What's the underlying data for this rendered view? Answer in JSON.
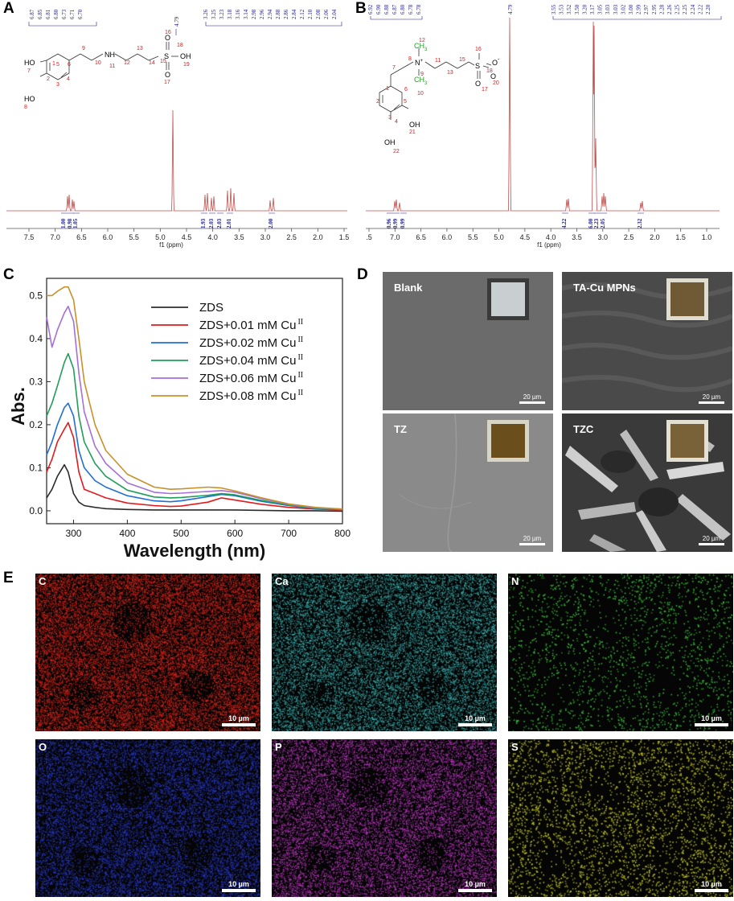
{
  "panels": {
    "a": {
      "letter": "A"
    },
    "b": {
      "letter": "B"
    },
    "c": {
      "letter": "C"
    },
    "d": {
      "letter": "D"
    },
    "e": {
      "letter": "E"
    }
  },
  "nmr_a": {
    "peak_labels_left": [
      "6.87",
      "6.85",
      "6.81",
      "6.80",
      "6.73",
      "6.71",
      "6.70"
    ],
    "peak_label_mid": "4.79",
    "peak_labels_right": [
      "3.26",
      "3.25",
      "3.23",
      "3.18",
      "3.16",
      "3.14",
      "2.98",
      "2.96",
      "2.94",
      "2.88",
      "2.86",
      "2.84",
      "2.12",
      "2.10",
      "2.08",
      "2.06",
      "2.04"
    ],
    "integrals": [
      "1.00",
      "0.98",
      "1.05",
      "1.93",
      "2.03",
      "2.03",
      "2.01",
      "2.00"
    ],
    "xlabel": "f1 (ppm)",
    "x_ticks": [
      "7.5",
      "7.0",
      "6.5",
      "6.0",
      "5.5",
      "5.0",
      "4.5",
      "4.0",
      "3.5",
      "3.0",
      "2.5",
      "2.0",
      "1.5"
    ],
    "structure_atoms": {
      "ho_top": "HO",
      "ho_bottom": "HO",
      "nh": "NH",
      "s": "S",
      "oh": "OH",
      "o_top": "O",
      "o_bottom": "O"
    },
    "structure_numbers": [
      "1",
      "2",
      "3",
      "4",
      "5",
      "6",
      "7",
      "8",
      "9",
      "10",
      "11",
      "12",
      "13",
      "14",
      "15",
      "16",
      "17",
      "18",
      "19"
    ]
  },
  "nmr_b": {
    "peak_labels_left": [
      "6.92",
      "6.90",
      "6.88",
      "6.87",
      "6.80",
      "6.78",
      "6.78"
    ],
    "peak_label_mid": "4.79",
    "peak_labels_right": [
      "3.55",
      "3.53",
      "3.52",
      "3.50",
      "3.20",
      "3.17",
      "3.05",
      "3.03",
      "3.03",
      "3.02",
      "3.00",
      "2.99",
      "2.97",
      "2.95",
      "2.28",
      "2.26",
      "2.25",
      "2.25",
      "2.24",
      "2.22",
      "2.20"
    ],
    "integrals": [
      "0.96",
      "0.99",
      "0.99",
      "4.22",
      "6.00",
      "2.23",
      "2.05",
      "2.32"
    ],
    "xlabel": "f1 (ppm)",
    "x_ticks": [
      ".5",
      "7.0",
      "6.5",
      "6.0",
      "5.5",
      "5.0",
      "4.5",
      "4.0",
      "3.5",
      "3.0",
      "2.5",
      "2.0",
      "1.5",
      "1.0"
    ],
    "structure_atoms": {
      "ch3_top": "CH",
      "ch3_bottom": "CH",
      "sub3": "3",
      "n": "N",
      "plus": "+",
      "s": "S",
      "o_minus": "O",
      "minus": "-",
      "o_right": "O",
      "o_bottom": "O",
      "oh": "OH",
      "oh_bottom": "OH"
    },
    "structure_numbers": [
      "1",
      "2",
      "3",
      "4",
      "5",
      "6",
      "7",
      "8",
      "9",
      "10",
      "11",
      "12",
      "13",
      "15",
      "16",
      "17",
      "18",
      "20",
      "21",
      "22"
    ]
  },
  "chart_data": {
    "type": "line",
    "title": "",
    "xlabel": "Wavelength (nm)",
    "ylabel": "Abs.",
    "xlim": [
      250,
      800
    ],
    "ylim": [
      -0.03,
      0.54
    ],
    "x_ticks": [
      300,
      400,
      500,
      600,
      700,
      800
    ],
    "y_ticks": [
      0.0,
      0.1,
      0.2,
      0.3,
      0.4,
      0.5
    ],
    "x_tick_labels": [
      "300",
      "400",
      "500",
      "600",
      "700",
      "800"
    ],
    "y_tick_labels": [
      "0.0",
      "0.1",
      "0.2",
      "0.3",
      "0.4",
      "0.5"
    ],
    "legend_position": "top-right",
    "x": [
      250,
      260,
      270,
      283,
      290,
      300,
      310,
      320,
      340,
      360,
      400,
      450,
      480,
      500,
      550,
      575,
      600,
      650,
      700,
      750,
      800
    ],
    "series": [
      {
        "name": "ZDS",
        "legend_main": "ZDS",
        "legend_sup": "",
        "color": "#2b2b2b",
        "values": [
          0.03,
          0.05,
          0.08,
          0.107,
          0.09,
          0.04,
          0.02,
          0.012,
          0.008,
          0.005,
          0.003,
          0.002,
          0.002,
          0.002,
          0.002,
          0.002,
          0.002,
          0.001,
          0.0,
          0.0,
          -0.001
        ]
      },
      {
        "name": "ZDS+0.01 mM Cu II",
        "legend_main": "ZDS+0.01 mM Cu",
        "legend_sup": "II",
        "color": "#e31a1c",
        "values": [
          0.09,
          0.12,
          0.16,
          0.19,
          0.205,
          0.17,
          0.09,
          0.05,
          0.04,
          0.03,
          0.018,
          0.012,
          0.01,
          0.011,
          0.02,
          0.03,
          0.025,
          0.015,
          0.008,
          0.004,
          0.002
        ]
      },
      {
        "name": "ZDS+0.02 mM Cu II",
        "legend_main": "ZDS+0.02 mM Cu",
        "legend_sup": "II",
        "color": "#1f6fd4",
        "values": [
          0.13,
          0.16,
          0.2,
          0.24,
          0.25,
          0.22,
          0.14,
          0.1,
          0.07,
          0.055,
          0.035,
          0.023,
          0.021,
          0.023,
          0.033,
          0.038,
          0.035,
          0.022,
          0.012,
          0.005,
          0.003
        ]
      },
      {
        "name": "ZDS+0.04 mM Cu II",
        "legend_main": "ZDS+0.04 mM Cu",
        "legend_sup": "II",
        "color": "#1f9e5a",
        "values": [
          0.22,
          0.25,
          0.29,
          0.345,
          0.365,
          0.33,
          0.22,
          0.16,
          0.11,
          0.08,
          0.048,
          0.032,
          0.03,
          0.031,
          0.036,
          0.04,
          0.037,
          0.024,
          0.013,
          0.006,
          0.003
        ]
      },
      {
        "name": "ZDS+0.06 mM Cu II",
        "legend_main": "ZDS+0.06 mM Cu",
        "legend_sup": "II",
        "color": "#a66fd8",
        "values": [
          0.45,
          0.38,
          0.42,
          0.46,
          0.475,
          0.44,
          0.32,
          0.23,
          0.15,
          0.11,
          0.065,
          0.043,
          0.04,
          0.041,
          0.045,
          0.047,
          0.043,
          0.028,
          0.015,
          0.007,
          0.004
        ]
      },
      {
        "name": "ZDS+0.08 mM Cu II",
        "legend_main": "ZDS+0.08 mM Cu",
        "legend_sup": "II",
        "color": "#c9902a",
        "values": [
          0.5,
          0.5,
          0.51,
          0.52,
          0.52,
          0.49,
          0.4,
          0.3,
          0.2,
          0.14,
          0.085,
          0.055,
          0.05,
          0.051,
          0.055,
          0.053,
          0.046,
          0.03,
          0.016,
          0.008,
          0.004
        ]
      }
    ]
  },
  "sem": {
    "tiles": [
      {
        "label": "Blank",
        "scale": "20 µm",
        "bg": "#6b6b6b",
        "swatch": "#c9cfd0",
        "swatch_border": "#3a3a3a"
      },
      {
        "label": "TA-Cu MPNs",
        "scale": "20 µm",
        "bg": "#4a4a4a",
        "swatch": "#6f5a35",
        "swatch_border": "#e0dcd0"
      },
      {
        "label": "TZ",
        "scale": "20 µm",
        "bg": "#8a8a8a",
        "swatch": "#6a4f1c",
        "swatch_border": "#d8d4c6"
      },
      {
        "label": "TZC",
        "scale": "20 µm",
        "bg": "#5a5a5a",
        "swatch": "#7a6238",
        "swatch_border": "#e3dfd3"
      }
    ]
  },
  "eds": {
    "maps": [
      {
        "element": "C",
        "scale": "10 µm",
        "color": "#e0261c",
        "density": 0.78
      },
      {
        "element": "Ca",
        "scale": "10 µm",
        "color": "#3fb8b8",
        "density": 0.55
      },
      {
        "element": "N",
        "scale": "10 µm",
        "color": "#3ec43e",
        "density": 0.08
      },
      {
        "element": "O",
        "scale": "10 µm",
        "color": "#2a3bd0",
        "density": 0.6
      },
      {
        "element": "P",
        "scale": "10 µm",
        "color": "#c23ac7",
        "density": 0.55
      },
      {
        "element": "S",
        "scale": "10 µm",
        "color": "#c8cc2a",
        "density": 0.14
      }
    ]
  }
}
